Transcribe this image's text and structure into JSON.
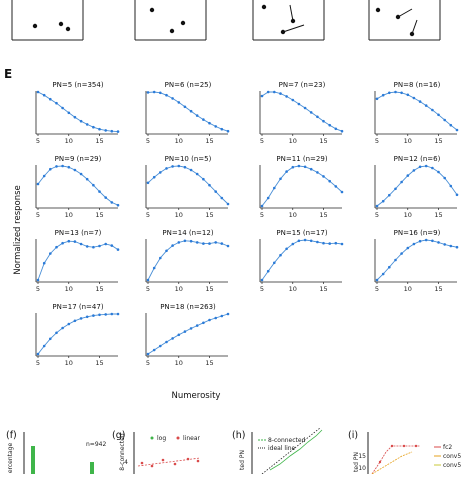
{
  "colors": {
    "curve": "#4a8fd6",
    "marker": "#2b7bd8",
    "axis": "#222222",
    "green": "#3fb54a",
    "red": "#d94a4a",
    "orange": "#e6a21d",
    "yellow": "#c8c83a"
  },
  "panel_letter_e": "E",
  "ylabel": "Normalized response",
  "xlabel": "Numerosity",
  "chart_data": [
    {
      "type": "line",
      "title": "PN=5 (n=354)",
      "x": [
        5,
        6,
        7,
        8,
        9,
        10,
        11,
        12,
        13,
        14,
        15,
        16,
        17,
        18
      ],
      "y": [
        1.0,
        0.92,
        0.82,
        0.72,
        0.6,
        0.48,
        0.37,
        0.27,
        0.19,
        0.12,
        0.07,
        0.04,
        0.02,
        0.01
      ],
      "xticks": [
        5,
        10,
        15
      ],
      "xlim": [
        5,
        18
      ],
      "ylim": [
        0,
        1
      ]
    },
    {
      "type": "line",
      "title": "PN=6 (n=25)",
      "x": [
        5,
        6,
        7,
        8,
        9,
        10,
        11,
        12,
        13,
        14,
        15,
        16,
        17,
        18
      ],
      "y": [
        0.99,
        1.0,
        0.98,
        0.92,
        0.84,
        0.74,
        0.63,
        0.52,
        0.41,
        0.31,
        0.22,
        0.14,
        0.07,
        0.02
      ],
      "xticks": [
        5,
        10,
        15
      ],
      "xlim": [
        5,
        18
      ],
      "ylim": [
        0,
        1
      ]
    },
    {
      "type": "line",
      "title": "PN=7 (n=23)",
      "x": [
        5,
        6,
        7,
        8,
        9,
        10,
        11,
        12,
        13,
        14,
        15,
        16,
        17,
        18
      ],
      "y": [
        0.9,
        1.0,
        1.0,
        0.96,
        0.89,
        0.8,
        0.7,
        0.6,
        0.49,
        0.38,
        0.27,
        0.17,
        0.08,
        0.02
      ],
      "xticks": [
        5,
        10,
        15
      ],
      "xlim": [
        5,
        18
      ],
      "ylim": [
        0,
        1
      ]
    },
    {
      "type": "line",
      "title": "PN=8 (n=16)",
      "x": [
        5,
        6,
        7,
        8,
        9,
        10,
        11,
        12,
        13,
        14,
        15,
        16,
        17,
        18
      ],
      "y": [
        0.83,
        0.92,
        0.98,
        1.0,
        0.98,
        0.93,
        0.85,
        0.76,
        0.66,
        0.55,
        0.43,
        0.3,
        0.17,
        0.05
      ],
      "xticks": [
        5,
        10,
        15
      ],
      "xlim": [
        5,
        18
      ],
      "ylim": [
        0,
        1
      ]
    },
    {
      "type": "line",
      "title": "PN=9 (n=29)",
      "x": [
        5,
        6,
        7,
        8,
        9,
        10,
        11,
        12,
        13,
        14,
        15,
        16,
        17,
        18
      ],
      "y": [
        0.55,
        0.75,
        0.92,
        0.99,
        1.0,
        0.97,
        0.9,
        0.8,
        0.67,
        0.52,
        0.36,
        0.21,
        0.09,
        0.02
      ],
      "xticks": [
        5,
        10,
        15
      ],
      "xlim": [
        5,
        18
      ],
      "ylim": [
        0,
        1
      ]
    },
    {
      "type": "line",
      "title": "PN=10 (n=5)",
      "x": [
        5,
        6,
        7,
        8,
        9,
        10,
        11,
        12,
        13,
        14,
        15,
        16,
        17,
        18
      ],
      "y": [
        0.58,
        0.72,
        0.84,
        0.94,
        0.99,
        1.0,
        0.97,
        0.9,
        0.8,
        0.67,
        0.52,
        0.36,
        0.2,
        0.05
      ],
      "xticks": [
        5,
        10,
        15
      ],
      "xlim": [
        5,
        18
      ],
      "ylim": [
        0,
        1
      ]
    },
    {
      "type": "line",
      "title": "PN=11 (n=29)",
      "x": [
        5,
        6,
        7,
        8,
        9,
        10,
        11,
        12,
        13,
        14,
        15,
        16,
        17,
        18
      ],
      "y": [
        0.0,
        0.2,
        0.45,
        0.68,
        0.86,
        0.97,
        1.0,
        0.98,
        0.92,
        0.84,
        0.74,
        0.62,
        0.49,
        0.35
      ],
      "xticks": [
        5,
        10,
        15
      ],
      "xlim": [
        5,
        18
      ],
      "ylim": [
        0,
        1
      ]
    },
    {
      "type": "line",
      "title": "PN=12 (n=6)",
      "x": [
        5,
        6,
        7,
        8,
        9,
        10,
        11,
        12,
        13,
        14,
        15,
        16,
        17,
        18
      ],
      "y": [
        0.0,
        0.12,
        0.27,
        0.43,
        0.6,
        0.76,
        0.89,
        0.98,
        1.0,
        0.95,
        0.85,
        0.7,
        0.5,
        0.28
      ],
      "xticks": [
        5,
        10,
        15
      ],
      "xlim": [
        5,
        18
      ],
      "ylim": [
        0,
        1
      ]
    },
    {
      "type": "line",
      "title": "PN=13 (n=7)",
      "x": [
        5,
        6,
        7,
        8,
        9,
        10,
        11,
        12,
        13,
        14,
        15,
        16,
        17,
        18
      ],
      "y": [
        0.0,
        0.42,
        0.66,
        0.82,
        0.92,
        0.97,
        0.96,
        0.9,
        0.84,
        0.82,
        0.85,
        0.9,
        0.86,
        0.76
      ],
      "xticks": [
        5,
        10,
        15
      ],
      "xlim": [
        5,
        18
      ],
      "ylim": [
        0,
        1
      ]
    },
    {
      "type": "line",
      "title": "PN=14 (n=12)",
      "x": [
        5,
        6,
        7,
        8,
        9,
        10,
        11,
        12,
        13,
        14,
        15,
        16,
        17,
        18
      ],
      "y": [
        0.0,
        0.3,
        0.55,
        0.73,
        0.86,
        0.94,
        0.98,
        0.97,
        0.94,
        0.91,
        0.91,
        0.94,
        0.91,
        0.85
      ],
      "xticks": [
        5,
        10,
        15
      ],
      "xlim": [
        5,
        18
      ],
      "ylim": [
        0,
        1
      ]
    },
    {
      "type": "line",
      "title": "PN=15 (n=17)",
      "x": [
        5,
        6,
        7,
        8,
        9,
        10,
        11,
        12,
        13,
        14,
        15,
        16,
        17,
        18
      ],
      "y": [
        0.0,
        0.22,
        0.43,
        0.62,
        0.78,
        0.9,
        0.98,
        1.0,
        0.98,
        0.95,
        0.92,
        0.91,
        0.92,
        0.9
      ],
      "xticks": [
        5,
        10,
        15
      ],
      "xlim": [
        5,
        18
      ],
      "ylim": [
        0,
        1
      ]
    },
    {
      "type": "line",
      "title": "PN=16 (n=9)",
      "x": [
        5,
        6,
        7,
        8,
        9,
        10,
        11,
        12,
        13,
        14,
        15,
        16,
        17,
        18
      ],
      "y": [
        0.0,
        0.15,
        0.32,
        0.5,
        0.66,
        0.8,
        0.9,
        0.97,
        1.0,
        0.98,
        0.94,
        0.89,
        0.85,
        0.82
      ],
      "xticks": [
        5,
        10,
        15
      ],
      "xlim": [
        5,
        18
      ],
      "ylim": [
        0,
        1
      ]
    },
    {
      "type": "line",
      "title": "PN=17 (n=47)",
      "x": [
        5,
        6,
        7,
        8,
        9,
        10,
        11,
        12,
        13,
        14,
        15,
        16,
        17,
        18
      ],
      "y": [
        0.0,
        0.2,
        0.38,
        0.53,
        0.65,
        0.75,
        0.83,
        0.89,
        0.93,
        0.96,
        0.98,
        0.99,
        1.0,
        1.0
      ],
      "xticks": [
        5,
        10,
        15
      ],
      "xlim": [
        5,
        18
      ],
      "ylim": [
        0,
        1
      ]
    },
    {
      "type": "line",
      "title": "PN=18 (n=263)",
      "x": [
        5,
        6,
        7,
        8,
        9,
        10,
        11,
        12,
        13,
        14,
        15,
        16,
        17,
        18
      ],
      "y": [
        0.0,
        0.1,
        0.2,
        0.3,
        0.39,
        0.48,
        0.56,
        0.64,
        0.71,
        0.78,
        0.85,
        0.9,
        0.95,
        1.0
      ],
      "xticks": [
        5,
        10,
        15
      ],
      "xlim": [
        5,
        18
      ],
      "ylim": [
        0,
        1
      ]
    }
  ],
  "bottom": {
    "f": {
      "letter": "(f)",
      "ylabel": "ercentage",
      "n_label": "n=942"
    },
    "g": {
      "letter": "(g)",
      "ylabel": "8-connected",
      "legend_log": "log",
      "legend_linear": "linear",
      "ytick": "4"
    },
    "h": {
      "letter": "(h)",
      "ylabel": "ted PN",
      "legend_a": "8-connected",
      "legend_b": "ideal line"
    },
    "i": {
      "letter": "(i)",
      "ylabel": "ted PN",
      "ytick_a": "15",
      "ytick_b": "10",
      "legend": [
        "fc2",
        "conv5",
        "conv5"
      ]
    }
  }
}
